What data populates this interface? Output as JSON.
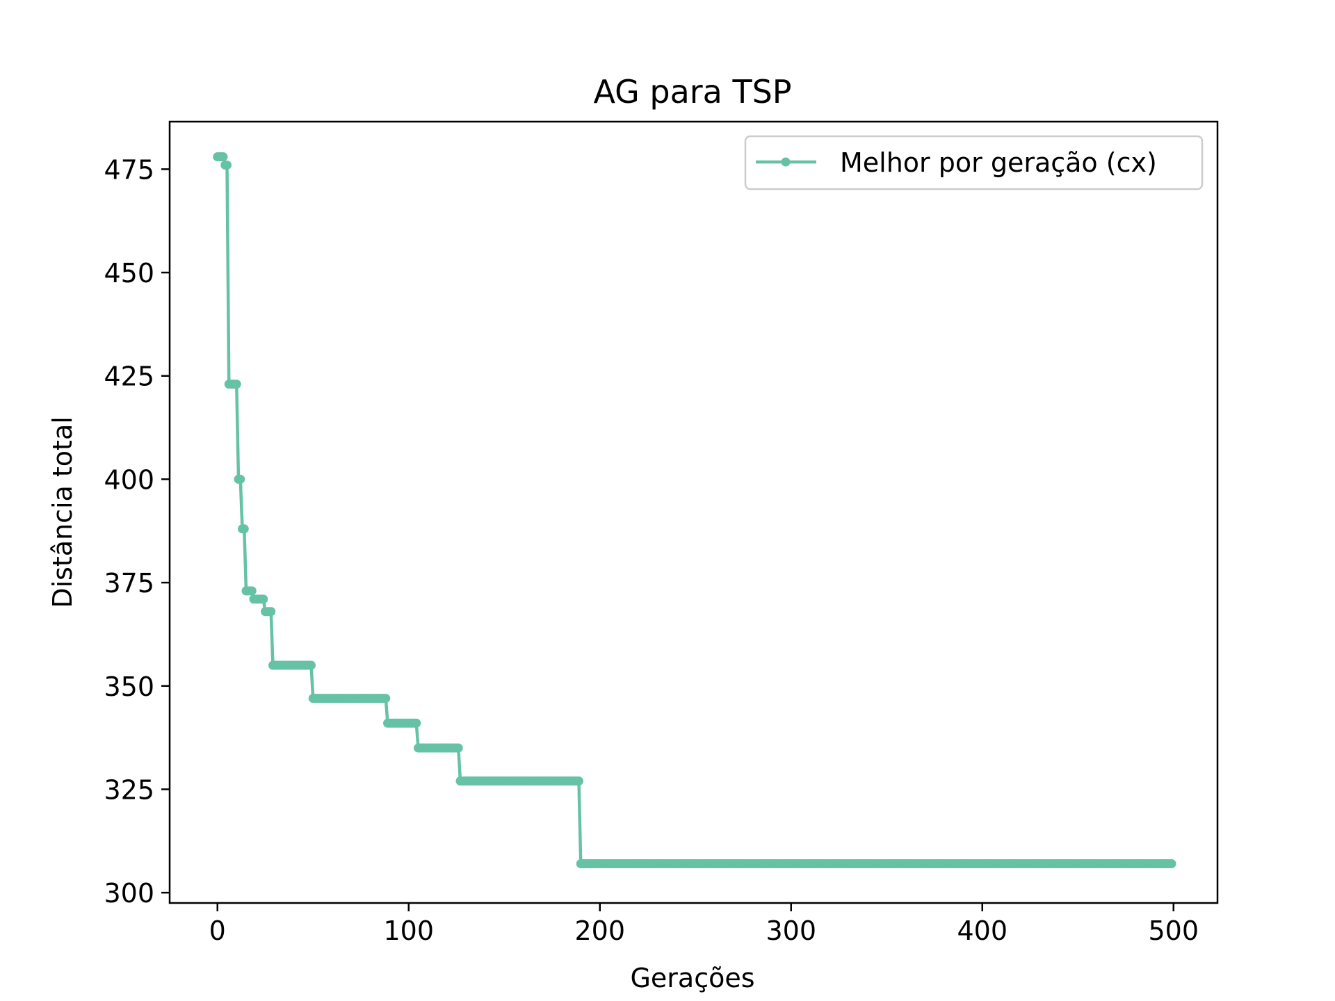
{
  "chart_data": {
    "type": "line",
    "title": "AG para TSP",
    "xlabel": "Gerações",
    "ylabel": "Distância total",
    "xlim": [
      -25,
      523
    ],
    "ylim": [
      297.5,
      486.5
    ],
    "xticks": [
      0,
      100,
      200,
      300,
      400,
      500
    ],
    "yticks": [
      300,
      325,
      350,
      375,
      400,
      425,
      450,
      475
    ],
    "grid": false,
    "legend_position": "top-right",
    "color": "#66c2a5",
    "series": [
      {
        "name": "Melhor por geração (cx)",
        "steps": [
          {
            "from": 0,
            "to": 3,
            "y": 478
          },
          {
            "from": 4,
            "to": 5,
            "y": 476
          },
          {
            "from": 6,
            "to": 10,
            "y": 423
          },
          {
            "from": 11,
            "to": 12,
            "y": 400
          },
          {
            "from": 13,
            "to": 14,
            "y": 388
          },
          {
            "from": 15,
            "to": 18,
            "y": 373
          },
          {
            "from": 19,
            "to": 24,
            "y": 371
          },
          {
            "from": 25,
            "to": 28,
            "y": 368
          },
          {
            "from": 29,
            "to": 49,
            "y": 355
          },
          {
            "from": 50,
            "to": 88,
            "y": 347
          },
          {
            "from": 89,
            "to": 104,
            "y": 341
          },
          {
            "from": 105,
            "to": 126,
            "y": 335
          },
          {
            "from": 127,
            "to": 189,
            "y": 327
          },
          {
            "from": 190,
            "to": 499,
            "y": 307
          }
        ]
      }
    ]
  }
}
